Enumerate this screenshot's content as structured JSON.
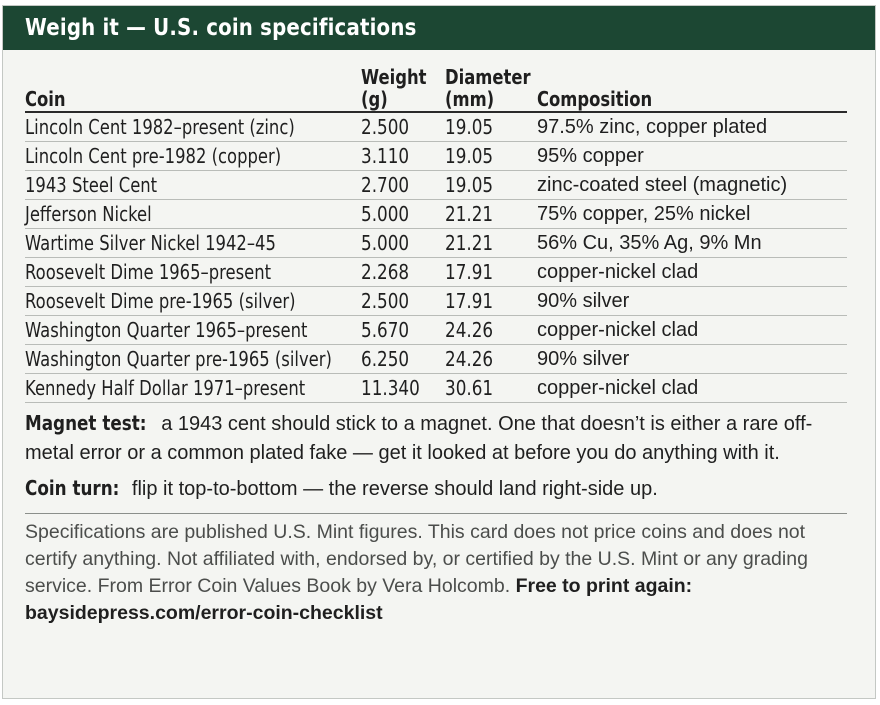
{
  "card": {
    "title": "Weigh it — U.S. coin specifications",
    "columns": {
      "coin": "Coin",
      "weight_line1": "Weight",
      "weight_line2": "(g)",
      "diameter_line1": "Diameter",
      "diameter_line2": "(mm)",
      "composition": "Composition"
    },
    "rows": [
      {
        "coin": "Lincoln Cent 1982–present (zinc)",
        "weight": "2.500",
        "diameter": "19.05",
        "composition": "97.5% zinc, copper plated"
      },
      {
        "coin": "Lincoln Cent pre-1982 (copper)",
        "weight": "3.110",
        "diameter": "19.05",
        "composition": "95% copper"
      },
      {
        "coin": "1943 Steel Cent",
        "weight": "2.700",
        "diameter": "19.05",
        "composition": "zinc-coated steel (magnetic)"
      },
      {
        "coin": "Jefferson Nickel",
        "weight": "5.000",
        "diameter": "21.21",
        "composition": "75% copper, 25% nickel"
      },
      {
        "coin": "Wartime Silver Nickel 1942–45",
        "weight": "5.000",
        "diameter": "21.21",
        "composition": "56% Cu, 35% Ag, 9% Mn"
      },
      {
        "coin": "Roosevelt Dime 1965–present",
        "weight": "2.268",
        "diameter": "17.91",
        "composition": "copper-nickel clad"
      },
      {
        "coin": "Roosevelt Dime pre-1965 (silver)",
        "weight": "2.500",
        "diameter": "17.91",
        "composition": "90% silver"
      },
      {
        "coin": "Washington Quarter 1965–present",
        "weight": "5.670",
        "diameter": "24.26",
        "composition": "copper-nickel clad"
      },
      {
        "coin": "Washington Quarter pre-1965 (silver)",
        "weight": "6.250",
        "diameter": "24.26",
        "composition": "90% silver"
      },
      {
        "coin": "Kennedy Half Dollar 1971–present",
        "weight": "11.340",
        "diameter": "30.61",
        "composition": "copper-nickel clad"
      }
    ],
    "notes": {
      "magnet_label": "Magnet test:",
      "magnet_text": " a 1943 cent should stick to a magnet. One that doesn’t is either a rare off-metal error or a common plated fake — get it looked at before you do anything with it.",
      "turn_label": "Coin turn:",
      "turn_text": " flip it top-to-bottom — the reverse should land right-side up."
    },
    "footer": {
      "text": "Specifications are published U.S. Mint figures. This card does not price coins and does not certify anything. Not affiliated with, endorsed by, or certified by the U.S. Mint or any grading service. From Error Coin Values Book by Vera Holcomb. ",
      "link": "Free to print again: baysidepress.com/error-coin-checklist"
    }
  }
}
